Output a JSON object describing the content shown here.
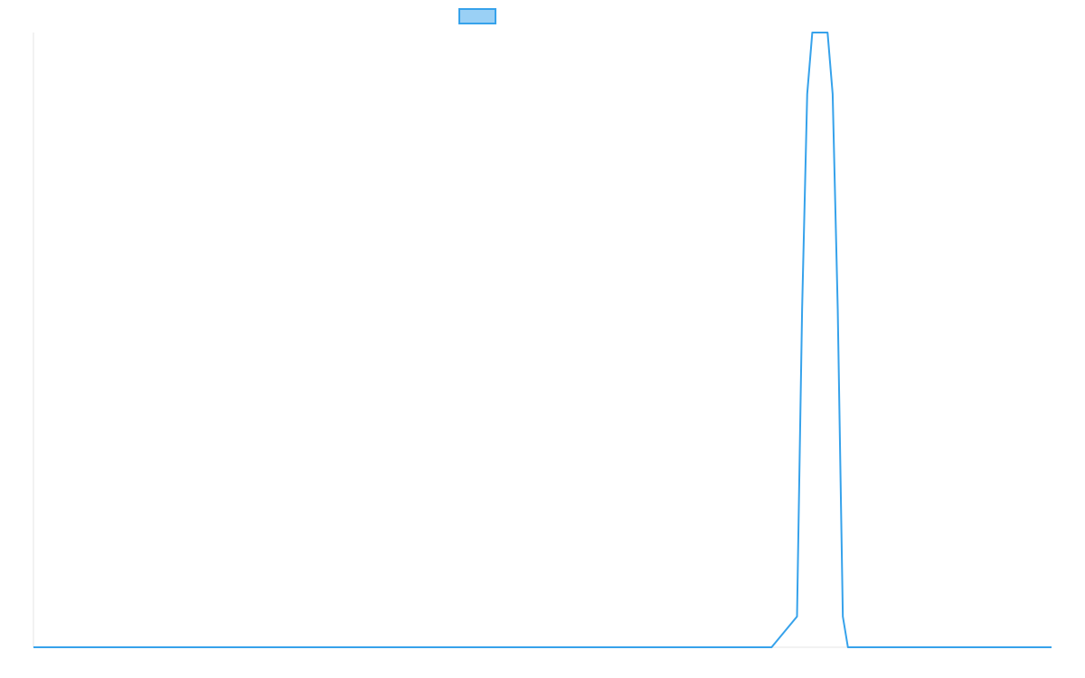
{
  "chart_data": {
    "type": "line",
    "title": "",
    "xlabel": "",
    "ylabel": "",
    "x": [
      0,
      5,
      10,
      15,
      20,
      25,
      30,
      35,
      40,
      45,
      50,
      55,
      60,
      65,
      70,
      75,
      80,
      85,
      90,
      95,
      100,
      105,
      110,
      115,
      120,
      125,
      130,
      135,
      140,
      145,
      150,
      151,
      152,
      153,
      154,
      155,
      156,
      157,
      158,
      159,
      160,
      165,
      170,
      175,
      180,
      185,
      190,
      195,
      200
    ],
    "ylim": [
      0,
      1
    ],
    "xlim": [
      0,
      200
    ],
    "grid": false,
    "legend": "top-center",
    "series": [
      {
        "name": "",
        "color": "#36a2eb",
        "fill": "#9ad0f5",
        "values": [
          0,
          0,
          0,
          0,
          0,
          0,
          0,
          0,
          0,
          0,
          0,
          0,
          0,
          0,
          0,
          0,
          0,
          0,
          0,
          0,
          0,
          0,
          0,
          0,
          0,
          0,
          0,
          0,
          0,
          0,
          0.05,
          0.55,
          0.9,
          1,
          1,
          1,
          1,
          0.9,
          0.55,
          0.05,
          0,
          0,
          0,
          0,
          0,
          0,
          0,
          0,
          0
        ]
      }
    ]
  }
}
